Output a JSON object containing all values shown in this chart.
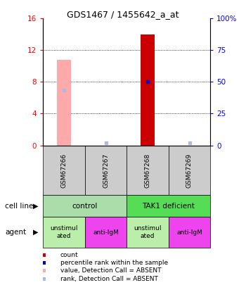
{
  "title": "GDS1467 / 1455642_a_at",
  "samples": [
    "GSM67266",
    "GSM67267",
    "GSM67268",
    "GSM67269"
  ],
  "bar_values": [
    null,
    null,
    14.0,
    null
  ],
  "absent_bar_values": [
    10.8,
    null,
    null,
    null
  ],
  "rank_values": [
    7.0,
    0.3,
    8.0,
    0.3
  ],
  "rank_absent": [
    true,
    true,
    false,
    true
  ],
  "ylim_left": [
    0,
    16
  ],
  "ylim_right": [
    0,
    100
  ],
  "yticks_left": [
    0,
    4,
    8,
    12,
    16
  ],
  "yticks_right": [
    0,
    25,
    50,
    75,
    100
  ],
  "ytick_labels_left": [
    "0",
    "4",
    "8",
    "12",
    "16"
  ],
  "ytick_labels_right": [
    "0",
    "25",
    "50",
    "75",
    "100%"
  ],
  "agent_labels": [
    "unstimul\nated",
    "anti-IgM",
    "unstimul\nated",
    "anti-IgM"
  ],
  "agent_colors": [
    "#bbeeaa",
    "#ee44ee",
    "#bbeeaa",
    "#ee44ee"
  ],
  "cell_line_colors": [
    "#aaddaa",
    "#55dd55"
  ],
  "legend_items": [
    {
      "color": "#cc0000",
      "label": "count"
    },
    {
      "color": "#0000cc",
      "label": "percentile rank within the sample"
    },
    {
      "color": "#ffaaaa",
      "label": "value, Detection Call = ABSENT"
    },
    {
      "color": "#aabbdd",
      "label": "rank, Detection Call = ABSENT"
    }
  ],
  "absent_rank_color": "#aabbdd",
  "present_rank_color": "#0000cc",
  "bar_width": 0.35
}
